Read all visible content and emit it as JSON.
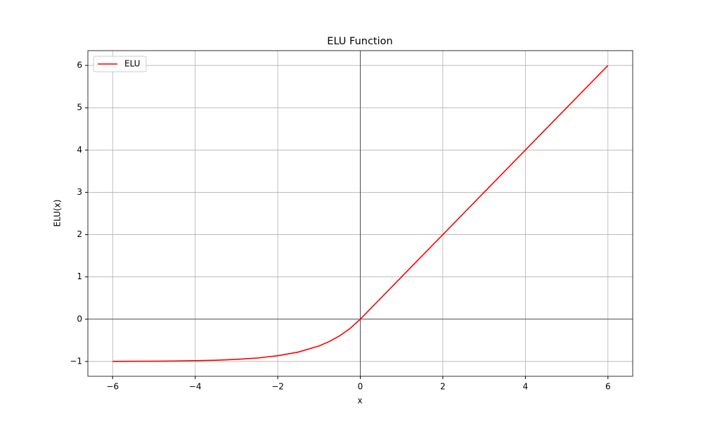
{
  "chart_data": {
    "type": "line",
    "title": "ELU Function",
    "x_label": "x",
    "y_label": "ELU(x)",
    "x": [
      -6,
      -5.5,
      -5,
      -4.5,
      -4,
      -3.5,
      -3,
      -2.5,
      -2,
      -1.5,
      -1,
      -0.75,
      -0.5,
      -0.25,
      0,
      1,
      2,
      3,
      4,
      5,
      6
    ],
    "series": [
      {
        "name": "ELU",
        "color": "#ff0000",
        "values": [
          -0.9975,
          -0.9959,
          -0.9933,
          -0.9889,
          -0.9817,
          -0.9698,
          -0.9502,
          -0.9179,
          -0.8647,
          -0.7769,
          -0.6321,
          -0.5276,
          -0.3935,
          -0.2212,
          0,
          1,
          2,
          3,
          4,
          5,
          6
        ]
      }
    ],
    "xlim": [
      -6.6,
      6.6
    ],
    "xticks": [
      {
        "value": -6,
        "label": "−6"
      },
      {
        "value": -4,
        "label": "−4"
      },
      {
        "value": -2,
        "label": "−2"
      },
      0,
      2,
      4,
      6
    ],
    "ylim": [
      -1.35,
      6.35
    ],
    "yticks": [
      {
        "value": -1,
        "label": "−1"
      },
      0,
      1,
      2,
      3,
      4,
      5,
      6
    ],
    "grid": true,
    "legend": "upper left"
  }
}
